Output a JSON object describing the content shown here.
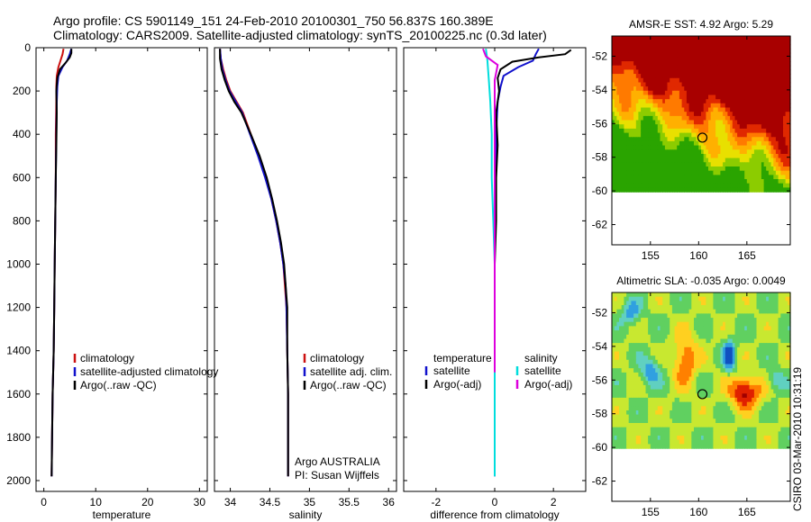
{
  "header": {
    "line1": "Argo profile: CS 5901149_151 24-Feb-2010 20100301_750 56.837S 160.389E",
    "line2": "Climatology: CARS2009. Satellite-adjusted climatology: synTS_20100225.nc (0.3d later)"
  },
  "footer_vertical": "CSIRO 03-Mar-2010 10:31:19",
  "colors": {
    "climatology": "#cc1111",
    "satellite": "#1111cc",
    "argo": "#000000",
    "cyan": "#00dddd",
    "magenta": "#dd00dd"
  },
  "chart_data": [
    {
      "id": "temperature",
      "type": "line",
      "xlabel": "temperature",
      "ylabel": "",
      "xlim": [
        -1.5,
        31.5
      ],
      "ylim": [
        2050,
        0
      ],
      "xticks": [
        0,
        10,
        20,
        30
      ],
      "yticks": [
        0,
        200,
        400,
        600,
        800,
        1000,
        1200,
        1400,
        1600,
        1800,
        2000
      ],
      "legend": {
        "position": "lower-right",
        "entries": [
          "climatology",
          "satellite-adjusted climatology",
          "Argo(..raw -QC)"
        ]
      },
      "series": [
        {
          "name": "climatology",
          "color": "#cc1111",
          "points": [
            [
              3.8,
              5
            ],
            [
              3.6,
              30
            ],
            [
              3.2,
              60
            ],
            [
              2.8,
              90
            ],
            [
              2.5,
              130
            ],
            [
              2.4,
              180
            ],
            [
              2.4,
              250
            ],
            [
              2.3,
              400
            ],
            [
              2.3,
              600
            ],
            [
              2.2,
              800
            ],
            [
              2.1,
              1000
            ],
            [
              2.0,
              1200
            ],
            [
              1.9,
              1400
            ],
            [
              1.7,
              1600
            ],
            [
              1.6,
              1800
            ],
            [
              1.5,
              1980
            ]
          ]
        },
        {
          "name": "satellite-adjusted climatology",
          "color": "#1111cc",
          "points": [
            [
              5.3,
              5
            ],
            [
              5.0,
              30
            ],
            [
              4.5,
              60
            ],
            [
              3.6,
              90
            ],
            [
              2.8,
              130
            ],
            [
              2.6,
              180
            ],
            [
              2.5,
              250
            ],
            [
              2.4,
              400
            ],
            [
              2.3,
              600
            ],
            [
              2.2,
              800
            ],
            [
              2.1,
              1000
            ],
            [
              2.0,
              1200
            ],
            [
              1.9,
              1400
            ],
            [
              1.7,
              1600
            ],
            [
              1.6,
              1800
            ],
            [
              1.5,
              1980
            ]
          ]
        },
        {
          "name": "Argo(..raw -QC)",
          "color": "#000000",
          "points": [
            [
              5.3,
              5
            ],
            [
              5.3,
              25
            ],
            [
              5.0,
              45
            ],
            [
              4.2,
              70
            ],
            [
              3.1,
              100
            ],
            [
              2.6,
              140
            ],
            [
              2.4,
              200
            ],
            [
              2.5,
              300
            ],
            [
              2.4,
              450
            ],
            [
              2.3,
              600
            ],
            [
              2.2,
              800
            ],
            [
              2.1,
              1000
            ],
            [
              2.0,
              1200
            ],
            [
              1.9,
              1400
            ],
            [
              1.7,
              1600
            ],
            [
              1.6,
              1800
            ],
            [
              1.5,
              1980
            ]
          ]
        }
      ]
    },
    {
      "id": "salinity",
      "type": "line",
      "xlabel": "salinity",
      "ylabel": "",
      "xlim": [
        33.8,
        36.1
      ],
      "ylim": [
        2050,
        0
      ],
      "xticks": [
        34,
        34.5,
        35,
        35.5,
        36
      ],
      "xtick_labels": [
        "34",
        "34.5",
        "35",
        "35.5",
        "36"
      ],
      "legend": {
        "position": "lower-right",
        "entries": [
          "climatology",
          "satellite adj. clim.",
          "Argo(..raw -QC)"
        ]
      },
      "annotation": [
        "Argo AUSTRALIA",
        "PI: Susan Wijffels"
      ],
      "series": [
        {
          "name": "climatology",
          "color": "#cc1111",
          "points": [
            [
              33.87,
              5
            ],
            [
              33.88,
              50
            ],
            [
              33.91,
              100
            ],
            [
              33.95,
              150
            ],
            [
              34.0,
              200
            ],
            [
              34.08,
              250
            ],
            [
              34.16,
              300
            ],
            [
              34.26,
              400
            ],
            [
              34.36,
              500
            ],
            [
              34.45,
              600
            ],
            [
              34.52,
              700
            ],
            [
              34.58,
              800
            ],
            [
              34.63,
              900
            ],
            [
              34.67,
              1000
            ],
            [
              34.69,
              1100
            ],
            [
              34.71,
              1200
            ],
            [
              34.72,
              1400
            ],
            [
              34.73,
              1600
            ],
            [
              34.73,
              1800
            ],
            [
              34.73,
              1980
            ]
          ]
        },
        {
          "name": "satellite adj. clim.",
          "color": "#1111cc",
          "points": [
            [
              33.87,
              5
            ],
            [
              33.88,
              50
            ],
            [
              33.9,
              100
            ],
            [
              33.94,
              150
            ],
            [
              33.99,
              200
            ],
            [
              34.07,
              250
            ],
            [
              34.15,
              300
            ],
            [
              34.25,
              400
            ],
            [
              34.35,
              500
            ],
            [
              34.44,
              600
            ],
            [
              34.52,
              700
            ],
            [
              34.58,
              800
            ],
            [
              34.63,
              900
            ],
            [
              34.67,
              1000
            ],
            [
              34.7,
              1100
            ],
            [
              34.71,
              1200
            ],
            [
              34.72,
              1400
            ],
            [
              34.73,
              1600
            ],
            [
              34.73,
              1800
            ],
            [
              34.73,
              1980
            ]
          ]
        },
        {
          "name": "Argo(..raw -QC)",
          "color": "#000000",
          "points": [
            [
              33.87,
              5
            ],
            [
              33.87,
              50
            ],
            [
              33.89,
              100
            ],
            [
              33.93,
              150
            ],
            [
              33.98,
              200
            ],
            [
              34.05,
              250
            ],
            [
              34.14,
              300
            ],
            [
              34.26,
              400
            ],
            [
              34.37,
              500
            ],
            [
              34.46,
              600
            ],
            [
              34.53,
              700
            ],
            [
              34.59,
              800
            ],
            [
              34.64,
              900
            ],
            [
              34.68,
              1000
            ],
            [
              34.7,
              1100
            ],
            [
              34.72,
              1200
            ],
            [
              34.72,
              1400
            ],
            [
              34.73,
              1600
            ],
            [
              34.73,
              1800
            ],
            [
              34.73,
              1980
            ]
          ]
        }
      ]
    },
    {
      "id": "difference",
      "type": "line",
      "xlabel": "difference from climatology",
      "ylabel": "",
      "xlim": [
        -3.1,
        3.1
      ],
      "ylim": [
        2050,
        0
      ],
      "xticks": [
        -2,
        0,
        2
      ],
      "legend": {
        "position": "lower-right",
        "headers": [
          "temperature",
          "salinity"
        ],
        "entries": [
          "satellite",
          "Argo(-adj)",
          "satellite",
          "Argo(-adj)"
        ]
      },
      "series": [
        {
          "name": "temperature satellite",
          "color": "#1111cc",
          "points": [
            [
              1.5,
              5
            ],
            [
              1.4,
              30
            ],
            [
              1.3,
              60
            ],
            [
              0.8,
              90
            ],
            [
              0.3,
              130
            ],
            [
              0.2,
              180
            ],
            [
              0.1,
              250
            ],
            [
              0.05,
              400
            ],
            [
              0.03,
              600
            ],
            [
              0.0,
              800
            ],
            [
              0.0,
              1000
            ],
            [
              0.0,
              1500
            ],
            [
              0.0,
              1980
            ]
          ]
        },
        {
          "name": "temperature Argo(-adj)",
          "color": "#000000",
          "points": [
            [
              2.6,
              10
            ],
            [
              2.4,
              30
            ],
            [
              1.5,
              45
            ],
            [
              0.6,
              65
            ],
            [
              0.2,
              100
            ],
            [
              0.1,
              140
            ],
            [
              0.15,
              200
            ],
            [
              0.05,
              300
            ],
            [
              0.1,
              450
            ],
            [
              0.05,
              600
            ],
            [
              0.05,
              800
            ],
            [
              0.0,
              1000
            ]
          ]
        },
        {
          "name": "salinity satellite",
          "color": "#00dddd",
          "points": [
            [
              -0.3,
              5
            ],
            [
              -0.25,
              60
            ],
            [
              -0.2,
              150
            ],
            [
              -0.15,
              250
            ],
            [
              -0.1,
              400
            ],
            [
              -0.1,
              600
            ],
            [
              -0.05,
              800
            ],
            [
              0.0,
              1000
            ],
            [
              0.0,
              1500
            ],
            [
              0.0,
              1980
            ]
          ]
        },
        {
          "name": "salinity Argo(-adj)",
          "color": "#dd00dd",
          "points": [
            [
              -0.4,
              5
            ],
            [
              -0.3,
              40
            ],
            [
              0.1,
              80
            ],
            [
              0.0,
              150
            ],
            [
              0.0,
              300
            ],
            [
              0.0,
              600
            ],
            [
              0.0,
              1000
            ],
            [
              0.0,
              1500
            ]
          ]
        }
      ]
    },
    {
      "id": "sst-map",
      "type": "heatmap",
      "title": "AMSR-E SST: 4.92 Argo: 5.29",
      "xlim": [
        151,
        169.5
      ],
      "ylim": [
        -63.2,
        -50.8
      ],
      "xticks": [
        155,
        160,
        165
      ],
      "yticks": [
        -52,
        -54,
        -56,
        -58,
        -60,
        -62
      ],
      "data_extent_lat": [
        -60,
        -50.8
      ],
      "float_position": [
        160.389,
        -56.837
      ],
      "palette": [
        "#2aa400",
        "#8ccc00",
        "#e8e000",
        "#ffb000",
        "#ff7a00",
        "#e02800",
        "#a80000"
      ]
    },
    {
      "id": "sla-map",
      "type": "heatmap",
      "title": "Altimetric SLA: -0.035 Argo: 0.0049",
      "xlim": [
        151,
        169.5
      ],
      "ylim": [
        -63.2,
        -50.8
      ],
      "xticks": [
        155,
        160,
        165
      ],
      "yticks": [
        -52,
        -54,
        -56,
        -58,
        -60,
        -62
      ],
      "data_extent_lat": [
        -60,
        -50.8
      ],
      "float_position": [
        160.389,
        -56.837
      ],
      "palette": [
        "#1050c0",
        "#30a0e0",
        "#60d0c0",
        "#60d060",
        "#c8e830",
        "#ffd020",
        "#ff8000",
        "#e02000",
        "#a00000"
      ]
    }
  ]
}
